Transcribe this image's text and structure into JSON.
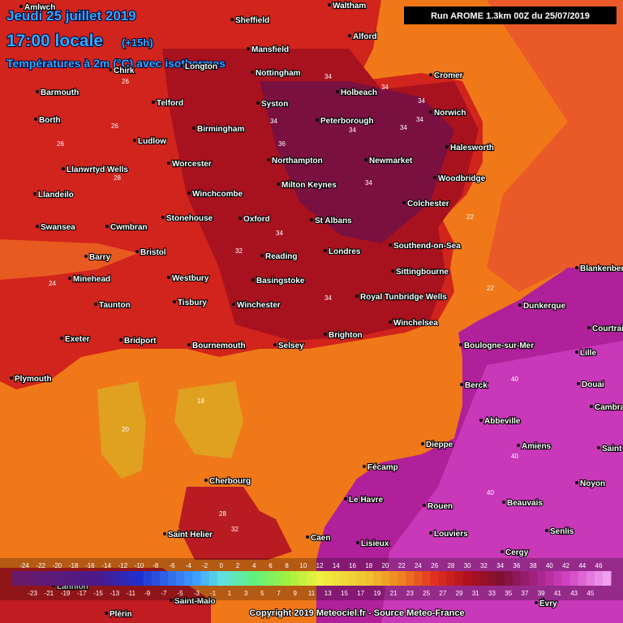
{
  "header": {
    "date": "Jeudi 25 juillet 2019",
    "time": "17:00 locale",
    "lead": "(+15h)",
    "subtitle": "Températures à 2m (°C) avec isothermes",
    "run": "Run AROME 1.3km 00Z du 25/07/2019"
  },
  "cities": [
    "Amlwch",
    "Sheffield",
    "Waltham",
    "Alford",
    "Mansfield",
    "Nottingham",
    "Chirk",
    "Longton",
    "Barmouth",
    "Holbeach",
    "Cromer",
    "Telford",
    "Syston",
    "Norwich",
    "Borth",
    "Birmingham",
    "Peterborough",
    "Ludlow",
    "Halesworth",
    "Newmarket",
    "Northampton",
    "Woodbridge",
    "Llanwrtyd Wells",
    "Worcester",
    "Milton Keynes",
    "Winchcombe",
    "Llandeilo",
    "Colchester",
    "Stonehouse",
    "Oxford",
    "St Albans",
    "Swansea",
    "Cwmbran",
    "Southend-on-Sea",
    "Bristol",
    "Barry",
    "Reading",
    "Londres",
    "Sittingbourne",
    "Minehead",
    "Westbury",
    "Basingstoke",
    "Royal Tunbridge Wells",
    "Taunton",
    "Tisbury",
    "Winchester",
    "Winchelsea",
    "Exeter",
    "Bridport",
    "Bournemouth",
    "Selsey",
    "Brighton",
    "Plymouth",
    "Cherbourg",
    "Saint Helier",
    "Caen",
    "Le Havre",
    "Fécamp",
    "Dieppe",
    "Rouen",
    "Lisieux",
    "Louviers",
    "Beauvais",
    "Amiens",
    "Abbeville",
    "Berck",
    "Boulogne-sur-Mer",
    "Lille",
    "Douai",
    "Courtrai",
    "Dunkerque",
    "Blankenberghe",
    "Cambrai",
    "Saint",
    "Noyon",
    "Senlis",
    "Cergy",
    "Saint-Malo",
    "Plérin",
    "Évry",
    "Lannion"
  ],
  "isotherm_labels": [
    34,
    34,
    34,
    34,
    34,
    34,
    34,
    36,
    34,
    34,
    34,
    32,
    26,
    26,
    26,
    24,
    28,
    22,
    22,
    18,
    20,
    28,
    32,
    40,
    40,
    40
  ],
  "colorbar": {
    "top": [
      -24,
      -22,
      -20,
      -18,
      -16,
      -14,
      -12,
      -10,
      -8,
      -6,
      -4,
      -2,
      0,
      2,
      4,
      6,
      8,
      10,
      12,
      14,
      16,
      18,
      20,
      22,
      24,
      26,
      28,
      30,
      32,
      34,
      36,
      38,
      40,
      42,
      44,
      46
    ],
    "bottom": [
      -23,
      -21,
      -19,
      -17,
      -15,
      -13,
      -11,
      -9,
      -7,
      -5,
      -3,
      -1,
      1,
      3,
      5,
      7,
      9,
      11,
      13,
      15,
      17,
      19,
      21,
      23,
      25,
      27,
      29,
      31,
      33,
      35,
      37,
      39,
      41,
      43,
      45
    ]
  },
  "footer": "Copyright 2019 Meteociel.fr - Source Meteo-France"
}
